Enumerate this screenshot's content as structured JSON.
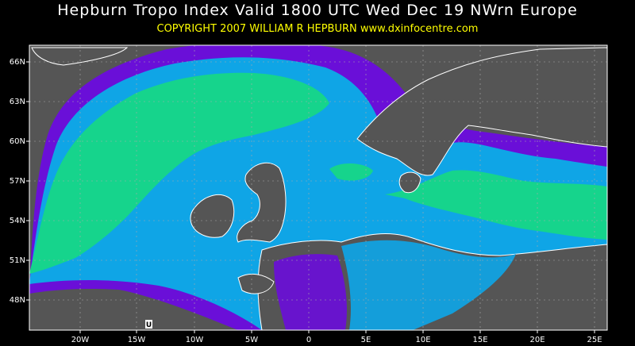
{
  "header": {
    "title": "Hepburn Tropo Index Valid 1800 UTC Wed Dec 19 NWrn Europe",
    "copyright": "COPYRIGHT 2007  WILLIAM R HEPBURN  www.dxinfocentre.com"
  },
  "map": {
    "region": "NW Europe",
    "latitude_labels": [
      "66N",
      "63N",
      "60N",
      "57N",
      "54N",
      "51N",
      "48N"
    ],
    "longitude_labels": [
      "20W",
      "15W",
      "10W",
      "5W",
      "0",
      "5E",
      "10E",
      "15E",
      "20E",
      "25E"
    ],
    "marker_label": "U",
    "colors": {
      "background": "#000000",
      "land_base": "#555555",
      "index_low": "#6a0fd8",
      "index_mid": "#0fa5e6",
      "index_high": "#16d48c",
      "coastline": "#ffffff",
      "grid": "#aaaaaa",
      "subtitle": "#ffff00"
    }
  }
}
